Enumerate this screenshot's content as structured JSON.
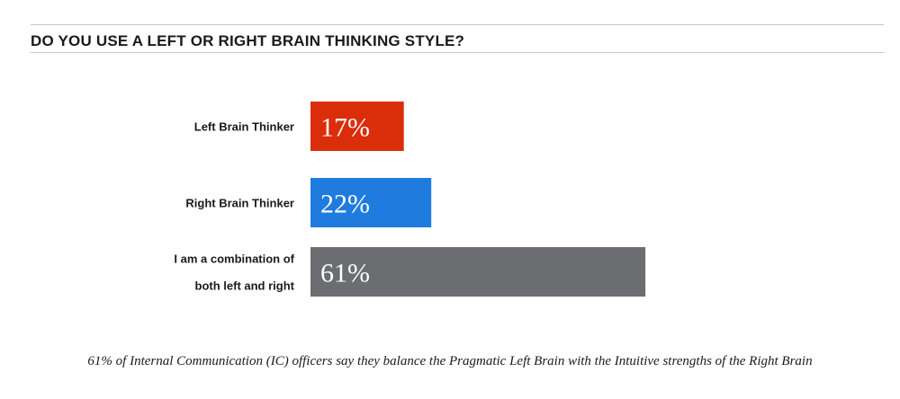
{
  "chart_data": {
    "type": "bar",
    "orientation": "horizontal",
    "title": "DO YOU USE A LEFT OR RIGHT BRAIN THINKING STYLE?",
    "categories": [
      [
        "Left Brain Thinker"
      ],
      [
        "Right Brain Thinker"
      ],
      [
        "I am a combination of",
        "both left and right"
      ]
    ],
    "values": [
      17,
      22,
      61
    ],
    "value_labels": [
      "17%",
      "22%",
      "61%"
    ],
    "colors": [
      "#dc2d0a",
      "#1f7cde",
      "#6c6d71"
    ],
    "xlim": [
      0,
      100
    ],
    "grid": false,
    "legend": "none",
    "footnote": "61% of Internal Communication (IC) officers say they balance the Pragmatic Left Brain with the Intuitive strengths of the Right Brain"
  }
}
